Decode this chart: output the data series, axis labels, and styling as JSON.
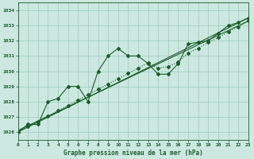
{
  "title": "Graphe pression niveau de la mer (hPa)",
  "bg_color": "#cce8e0",
  "plot_bg_color": "#cce8e0",
  "grid_color": "#99ccbb",
  "line_color": "#1a5c2a",
  "x_min": 0,
  "x_max": 23,
  "y_min": 1025.5,
  "y_max": 1034.5,
  "yticks": [
    1026,
    1027,
    1028,
    1029,
    1030,
    1031,
    1032,
    1033,
    1034
  ],
  "xticks": [
    0,
    1,
    2,
    3,
    4,
    5,
    6,
    7,
    8,
    9,
    10,
    11,
    12,
    13,
    14,
    15,
    16,
    17,
    18,
    19,
    20,
    21,
    22,
    23
  ],
  "series1_x": [
    0,
    1,
    2,
    3,
    4,
    5,
    6,
    7,
    8,
    9,
    10,
    11,
    12,
    13,
    14,
    15,
    16,
    17,
    18,
    19,
    20,
    21,
    22,
    23
  ],
  "series1_y": [
    1026.0,
    1026.5,
    1026.5,
    1028.0,
    1028.2,
    1029.0,
    1029.0,
    1028.0,
    1030.0,
    1031.0,
    1031.5,
    1031.0,
    1031.0,
    1030.5,
    1029.8,
    1029.8,
    1030.5,
    1031.8,
    1031.9,
    1032.0,
    1032.5,
    1033.0,
    1033.2,
    1033.5
  ],
  "series2_x": [
    0,
    1,
    2,
    3,
    4,
    5,
    6,
    7,
    8,
    9,
    10,
    11,
    12,
    13,
    14,
    15,
    16,
    17,
    18,
    19,
    20,
    21,
    22,
    23
  ],
  "series2_y": [
    1026.0,
    1026.35,
    1026.7,
    1027.05,
    1027.4,
    1027.75,
    1028.1,
    1028.45,
    1028.8,
    1029.15,
    1029.5,
    1029.85,
    1030.2,
    1030.55,
    1030.2,
    1030.3,
    1030.6,
    1031.2,
    1031.5,
    1031.9,
    1032.2,
    1032.6,
    1032.9,
    1033.3
  ],
  "series3_x": [
    0,
    23
  ],
  "series3_y": [
    1026.0,
    1033.5
  ],
  "series4_x": [
    0,
    23
  ],
  "series4_y": [
    1026.1,
    1033.3
  ]
}
